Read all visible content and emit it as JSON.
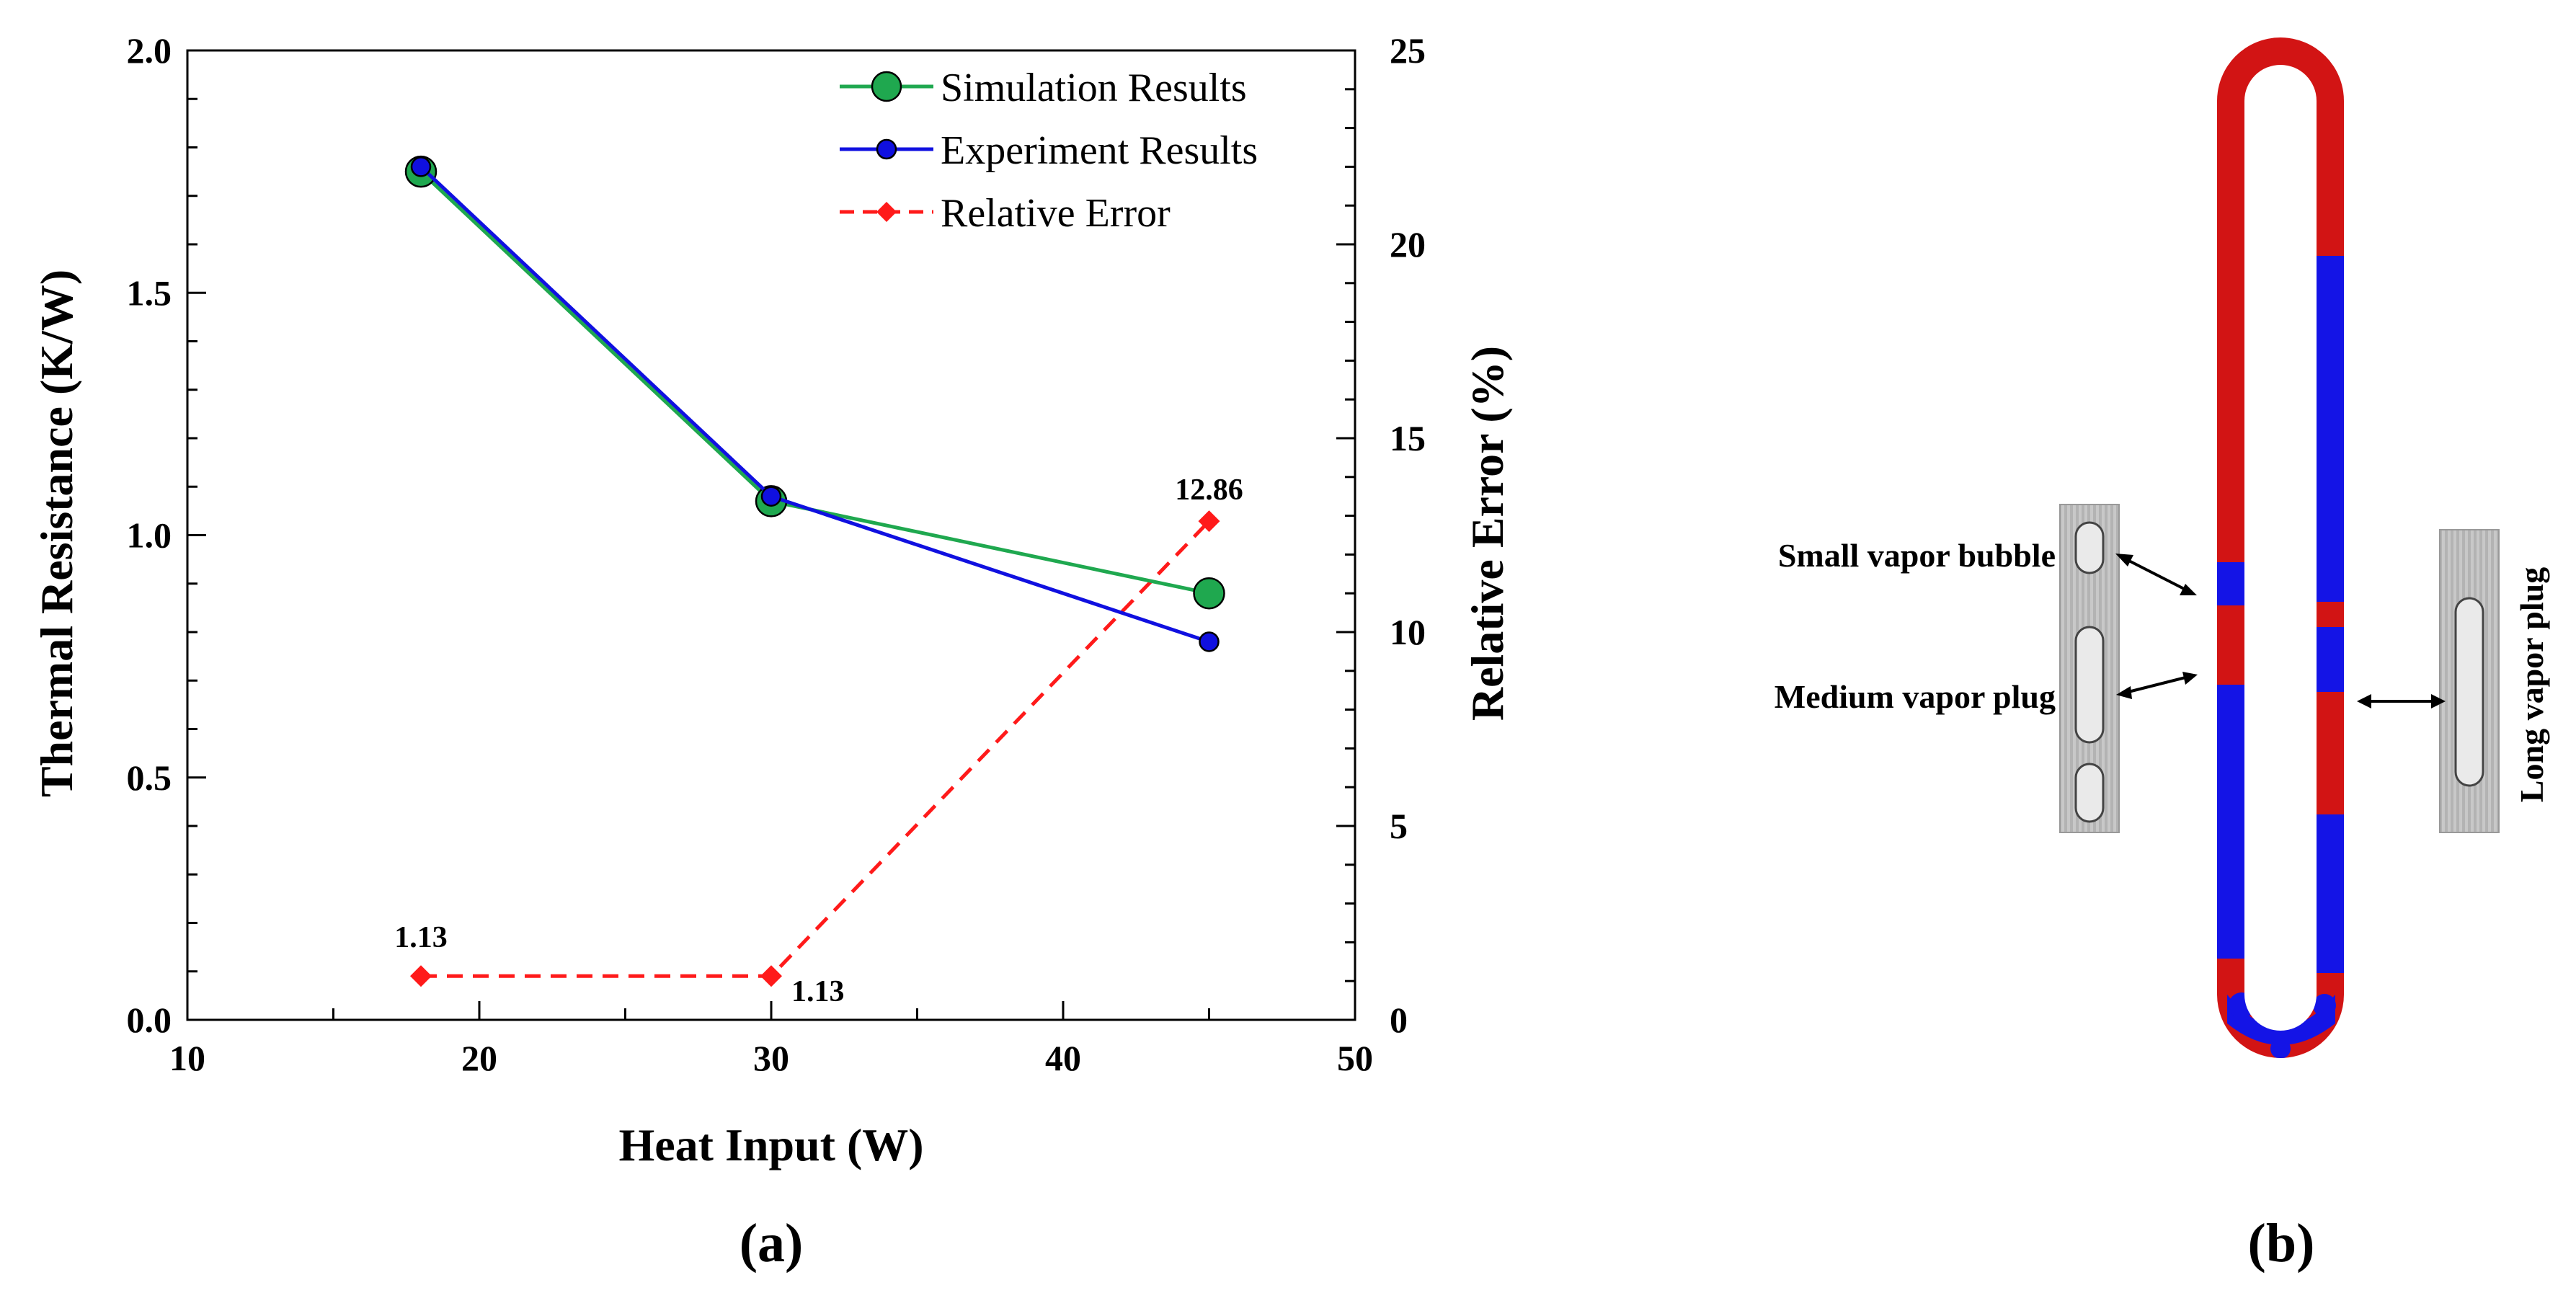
{
  "chart_data": {
    "type": "line",
    "x": [
      18,
      30,
      45
    ],
    "xlabel": "Heat Input (W)",
    "ylabel": "Thermal Resistance (K/W)",
    "y2label": "Relative Error (%)",
    "xlim": [
      10,
      50
    ],
    "ylim": [
      0,
      2.0
    ],
    "y2lim": [
      0,
      25
    ],
    "xticks": [
      "10",
      "20",
      "30",
      "40",
      "50"
    ],
    "yticks": [
      "0.0",
      "0.5",
      "1.0",
      "1.5",
      "2.0"
    ],
    "y2ticks": [
      "0",
      "5",
      "10",
      "15",
      "20",
      "25"
    ],
    "grid": false,
    "legend_position": "top-right",
    "series": [
      {
        "name": "Simulation Results",
        "axis": "left",
        "values": [
          1.75,
          1.07,
          0.88
        ],
        "color": "#1fa84f",
        "marker": "circle-large",
        "line": "solid"
      },
      {
        "name": "Experiment Results",
        "axis": "left",
        "values": [
          1.76,
          1.08,
          0.78
        ],
        "color": "#1010e0",
        "marker": "circle-small",
        "line": "solid"
      },
      {
        "name": "Relative Error",
        "axis": "right",
        "values": [
          1.13,
          1.13,
          12.86
        ],
        "color": "#ff1a1a",
        "marker": "diamond",
        "line": "dashed"
      }
    ],
    "data_labels": [
      "1.13",
      "1.13",
      "12.86"
    ],
    "panel_label": "(a)"
  },
  "figure_b": {
    "panel_label": "(b)",
    "annotations": {
      "small_bubble": "Small vapor bubble",
      "medium_plug": "Medium vapor plug",
      "long_plug": "Long vapor plug"
    },
    "colors": {
      "liquid": "#d21414",
      "vapor": "#1414e6"
    }
  }
}
